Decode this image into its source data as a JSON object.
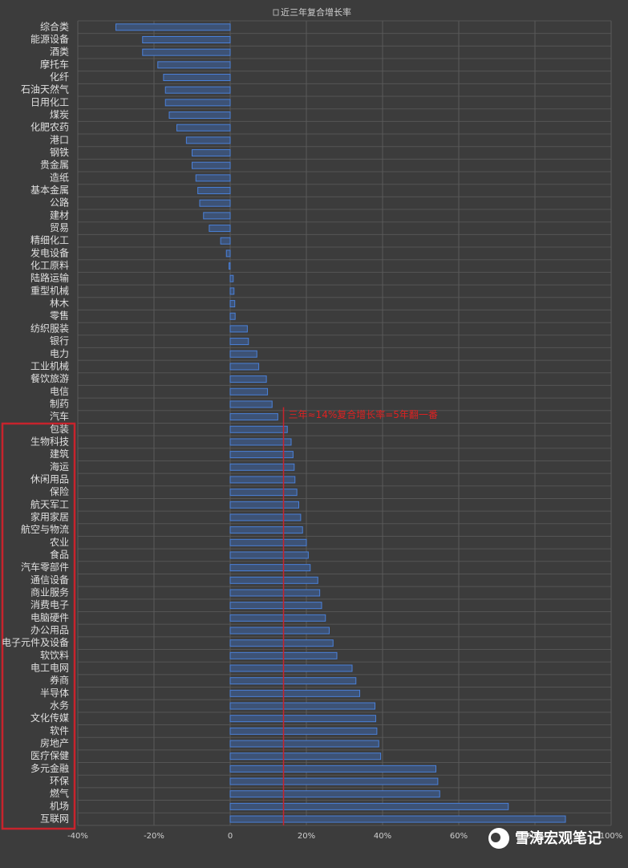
{
  "chart_data": {
    "type": "barh",
    "categories": [
      "综合类",
      "能源设备",
      "酒类",
      "摩托车",
      "化纤",
      "石油天然气",
      "日用化工",
      "煤炭",
      "化肥农药",
      "港口",
      "钢铁",
      "贵金属",
      "造纸",
      "基本金属",
      "公路",
      "建材",
      "贸易",
      "精细化工",
      "发电设备",
      "化工原料",
      "陆路运输",
      "重型机械",
      "林木",
      "零售",
      "纺织服装",
      "银行",
      "电力",
      "工业机械",
      "餐饮旅游",
      "电信",
      "制药",
      "汽车",
      "包装",
      "生物科技",
      "建筑",
      "海运",
      "休闲用品",
      "保险",
      "航天军工",
      "家用家居",
      "航空与物流",
      "农业",
      "食品",
      "汽车零部件",
      "通信设备",
      "商业服务",
      "消费电子",
      "电脑硬件",
      "办公用品",
      "电子元件及设备",
      "软饮料",
      "电工电网",
      "券商",
      "半导体",
      "水务",
      "文化传媒",
      "软件",
      "房地产",
      "医疗保健",
      "多元金融",
      "环保",
      "燃气",
      "机场",
      "互联网"
    ],
    "series": [
      {
        "name": "近三年复合增长率",
        "color": "#4a80d8",
        "values": [
          -30,
          -23,
          -23,
          -19,
          -17.5,
          -17,
          -17,
          -16,
          -14,
          -11.5,
          -10,
          -10,
          -9,
          -8.5,
          -8,
          -7,
          -5.5,
          -2.5,
          -1,
          -0.3,
          0.8,
          1,
          1.2,
          1.3,
          4.5,
          4.8,
          7,
          7.5,
          9.5,
          9.8,
          11,
          12.5,
          15,
          16,
          16.5,
          16.8,
          17,
          17.5,
          18,
          18.5,
          19,
          20,
          20.5,
          21,
          23,
          23.5,
          24,
          25,
          26,
          27,
          28,
          32,
          33,
          34,
          38,
          38.2,
          38.5,
          39,
          39.5,
          54,
          54.5,
          55,
          73,
          88
        ]
      }
    ],
    "xlim": [
      -40,
      100
    ],
    "xticks": [
      {
        "value": -40,
        "label": "-40%"
      },
      {
        "value": -20,
        "label": "-20%"
      },
      0,
      {
        "value": 20,
        "label": "20%"
      },
      {
        "value": 40,
        "label": "40%"
      },
      {
        "value": 60,
        "label": "60%"
      },
      {
        "value": 80,
        "label": "80%"
      },
      {
        "value": 100,
        "label": "100%"
      }
    ],
    "grid": true,
    "reference_line": {
      "value": 14,
      "text": "三年≈14%复合增长率=5年翻一番"
    },
    "watermark": "雪涛宏观笔记"
  }
}
